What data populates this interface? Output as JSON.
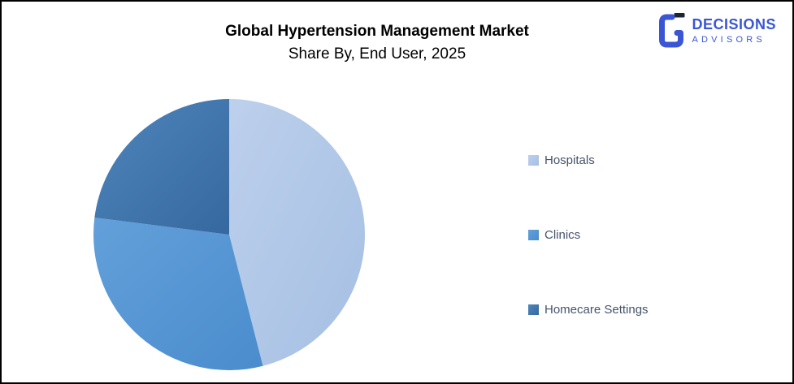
{
  "header": {
    "title": "Global Hypertension Management Market",
    "subtitle": "Share By, End User, 2025"
  },
  "logo": {
    "name": "DECISIONS",
    "sub": "ADVISORS",
    "brand_color": "#3a56d4",
    "icon_dark_accent": "#1c2633",
    "icon": "stylized-g-mark"
  },
  "text_colors": {
    "title": "#000000",
    "legend": "#44546a"
  },
  "chart_data": {
    "type": "pie",
    "title": "Global Hypertension Management Market",
    "subtitle": "Share By, End User, 2025",
    "rotation": "clockwise starting at 12 o'clock",
    "legend_position": "right",
    "data_labels_shown": false,
    "values_note": "percent share estimated from slice angles (no labels in image)",
    "slices": [
      {
        "label": "Hospitals",
        "value": 46,
        "color": "#aec6e8",
        "gradient": [
          "#bdd0ec",
          "#a5bfe3"
        ]
      },
      {
        "label": "Clinics",
        "value": 31,
        "color": "#5295d3",
        "gradient": [
          "#63a0da",
          "#4a8ccd"
        ]
      },
      {
        "label": "Homecare Settings",
        "value": 23,
        "color": "#447eb5",
        "gradient": [
          "#4f86bc",
          "#35689e"
        ]
      }
    ]
  }
}
